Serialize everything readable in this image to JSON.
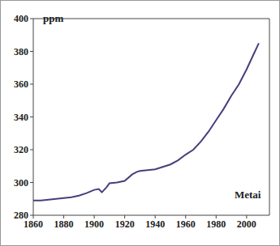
{
  "chart_data": {
    "type": "line",
    "y_label": "ppm",
    "x_label": "Metai",
    "x": [
      1860,
      1865,
      1870,
      1875,
      1880,
      1885,
      1890,
      1895,
      1900,
      1903,
      1905,
      1908,
      1910,
      1915,
      1920,
      1925,
      1928,
      1930,
      1935,
      1940,
      1945,
      1950,
      1955,
      1960,
      1965,
      1970,
      1975,
      1980,
      1985,
      1990,
      1995,
      2000,
      2005,
      2008
    ],
    "values": [
      289,
      289,
      289.5,
      290,
      290.5,
      291,
      292,
      293.5,
      295.5,
      296,
      294,
      297,
      299.5,
      300,
      301,
      305,
      306.5,
      307,
      307.5,
      308,
      309.5,
      311,
      313.5,
      317,
      320,
      325,
      331,
      338,
      345,
      353,
      360,
      369,
      379,
      385
    ],
    "color": "#4b3d7c",
    "xlim": [
      1860,
      2015
    ],
    "xticks": [
      1860,
      1880,
      1900,
      1920,
      1940,
      1960,
      1980,
      2000
    ],
    "ylim": [
      280,
      400
    ],
    "yticks": [
      280,
      300,
      320,
      340,
      360,
      380,
      400
    ],
    "grid": false
  }
}
